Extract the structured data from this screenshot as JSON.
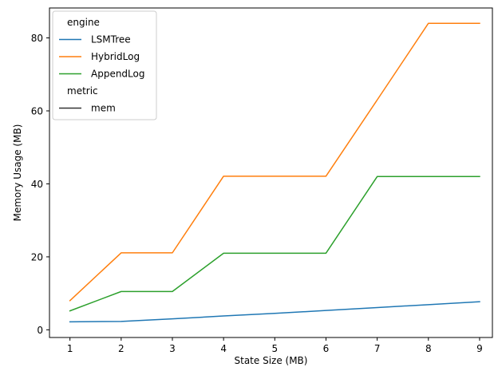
{
  "chart_data": {
    "type": "line",
    "title": "",
    "xlabel": "State Size (MB)",
    "ylabel": "Memory Usage (MB)",
    "xlim": [
      0.6,
      9.25
    ],
    "ylim": [
      -2.1,
      88.2
    ],
    "xticks": [
      1,
      2,
      3,
      4,
      5,
      6,
      7,
      8,
      9
    ],
    "yticks": [
      0,
      20,
      40,
      60,
      80
    ],
    "grid": false,
    "legend": {
      "placement": "top-left",
      "sections": [
        {
          "title": "engine",
          "entries": [
            {
              "label": "LSMTree",
              "color": "#1f77b4"
            },
            {
              "label": "HybridLog",
              "color": "#ff7f0e"
            },
            {
              "label": "AppendLog",
              "color": "#2ca02c"
            }
          ]
        },
        {
          "title": "metric",
          "entries": [
            {
              "label": "mem",
              "color": "#333333"
            }
          ]
        }
      ]
    },
    "x": [
      1,
      2,
      3,
      4,
      5,
      6,
      7,
      8,
      9
    ],
    "series": [
      {
        "name": "LSMTree",
        "color": "#1f77b4",
        "values": [
          2.2,
          2.3,
          3.0,
          3.8,
          4.5,
          5.3,
          6.1,
          6.9,
          7.7
        ]
      },
      {
        "name": "HybridLog",
        "color": "#ff7f0e",
        "values": [
          8.0,
          21.1,
          21.1,
          42.1,
          42.1,
          42.1,
          63.0,
          84.0,
          84.0
        ]
      },
      {
        "name": "AppendLog",
        "color": "#2ca02c",
        "values": [
          5.2,
          10.5,
          10.5,
          21.0,
          21.0,
          21.0,
          42.0,
          42.0,
          42.0
        ]
      }
    ]
  }
}
